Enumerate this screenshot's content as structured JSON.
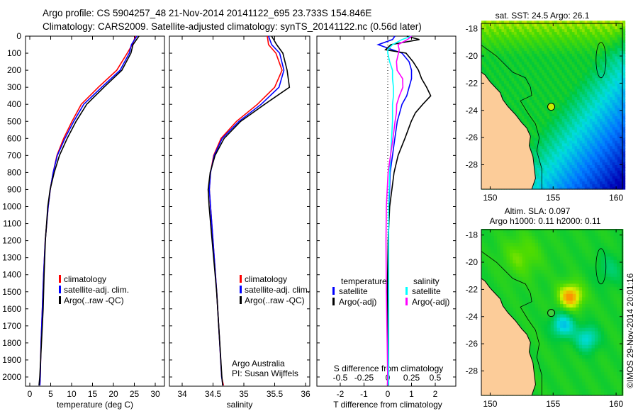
{
  "header": {
    "line1": "Argo profile: CS 5904257_48 21-Nov-2014 20141122_695 23.733S 154.846E",
    "line2": "Climatology: CARS2009. Satellite-adjusted climatology: synTS_20141122.nc (0.56d later)"
  },
  "credit": "©IMOS 29-Nov-2014 20:01:16",
  "colors": {
    "climatology": "#ff0000",
    "satellite": "#0000ff",
    "argo": "#000000",
    "sal_satellite": "#00ffff",
    "sal_argo": "#ff00ff",
    "land": "#fccc99"
  },
  "chart_data": [
    {
      "type": "line",
      "title": "",
      "xlabel": "temperature (deg C)",
      "ylabel": "",
      "xlim": [
        -1,
        31.5
      ],
      "ylim": [
        2055,
        0
      ],
      "xticks": [
        "0",
        "5",
        "10",
        "15",
        "20",
        "25",
        "30"
      ],
      "yticks": [
        "0",
        "100",
        "200",
        "300",
        "400",
        "500",
        "600",
        "700",
        "800",
        "900",
        "1000",
        "1100",
        "1200",
        "1300",
        "1400",
        "1500",
        "1600",
        "1700",
        "1800",
        "1900",
        "2000"
      ],
      "legend": [
        "climatology",
        "satellite-adj. clim.",
        "Argo(..raw -QC)"
      ],
      "depth": [
        0,
        50,
        100,
        200,
        300,
        400,
        500,
        600,
        700,
        800,
        900,
        1000,
        1200,
        1400,
        1600,
        1800,
        2000,
        2050
      ],
      "series": [
        {
          "name": "climatology",
          "values": [
            25.3,
            24.5,
            23.3,
            20.8,
            16.4,
            12.3,
            10.1,
            8.1,
            6.5,
            5.6,
            4.9,
            4.4,
            3.7,
            3.3,
            3.0,
            2.7,
            2.5,
            2.4
          ]
        },
        {
          "name": "satellite-adj. clim.",
          "values": [
            25.6,
            24.3,
            23.8,
            21.6,
            17.2,
            12.9,
            10.5,
            8.4,
            6.6,
            5.6,
            4.9,
            4.4,
            3.7,
            3.3,
            3.0,
            2.7,
            2.5,
            2.4
          ]
        },
        {
          "name": "Argo(..raw -QC)",
          "values": [
            26.1,
            24.5,
            24.0,
            22.0,
            17.9,
            13.8,
            11.1,
            8.8,
            6.9,
            5.8,
            5.0,
            4.5,
            3.8,
            3.3,
            3.0,
            2.7,
            2.5,
            2.4
          ]
        }
      ]
    },
    {
      "type": "line",
      "xlabel": "salinity",
      "xlim": [
        33.8,
        36.1
      ],
      "ylim": [
        2055,
        0
      ],
      "xticks": [
        "34",
        "34.5",
        "35",
        "35.5",
        "36"
      ],
      "legend": [
        "climatology",
        "satellite-adj. clim.",
        "Argo(..raw -QC)"
      ],
      "annotation": [
        "Argo Australia",
        "PI: Susan Wijffels"
      ],
      "depth": [
        0,
        50,
        100,
        200,
        300,
        400,
        500,
        600,
        700,
        800,
        900,
        1000,
        1200,
        1500,
        2000,
        2050
      ],
      "series": [
        {
          "name": "climatology",
          "values": [
            35.38,
            35.4,
            35.52,
            35.62,
            35.5,
            35.22,
            34.88,
            34.63,
            34.51,
            34.46,
            34.44,
            34.46,
            34.5,
            34.56,
            34.64,
            34.67
          ]
        },
        {
          "name": "satellite-adj. clim.",
          "values": [
            35.4,
            35.45,
            35.58,
            35.65,
            35.57,
            35.28,
            34.92,
            34.65,
            34.52,
            34.46,
            34.44,
            34.46,
            34.5,
            34.56,
            34.64,
            34.66
          ]
        },
        {
          "name": "Argo(..raw -QC)",
          "values": [
            35.45,
            35.52,
            35.62,
            35.7,
            35.75,
            35.35,
            34.95,
            34.67,
            34.52,
            34.45,
            34.43,
            34.45,
            34.49,
            34.55,
            34.63,
            34.65
          ]
        }
      ]
    },
    {
      "type": "line",
      "xlabel": "T difference from climatology",
      "xlabel2": "S difference from climatology",
      "xlim": [
        -3,
        2.9
      ],
      "ylim": [
        2055,
        0
      ],
      "xticks": [
        "-2",
        "-1",
        "0",
        "1",
        "2"
      ],
      "xticks2": [
        "-0.5",
        "-0.25",
        "0",
        "0.25",
        "0.5"
      ],
      "legend_titles": [
        "temperature",
        "salinity"
      ],
      "legend": [
        "satellite",
        "Argo(-adj)",
        "satellite",
        "Argo(-adj)"
      ],
      "depth": [
        0,
        20,
        50,
        80,
        100,
        150,
        200,
        250,
        300,
        350,
        400,
        450,
        500,
        600,
        700,
        800,
        1000,
        1200,
        1500,
        1800,
        2000,
        2050
      ],
      "series": [
        {
          "name": "temperature satellite",
          "unit": "degC",
          "values": [
            0.3,
            0.2,
            -0.4,
            0.2,
            0.6,
            0.9,
            1.0,
            1.0,
            0.9,
            0.8,
            0.6,
            0.5,
            0.4,
            0.3,
            0.2,
            0.1,
            0.05,
            0.03,
            0.0,
            0.0,
            0.0,
            0.0
          ]
        },
        {
          "name": "temperature Argo(-adj)",
          "unit": "degC",
          "values": [
            0.8,
            1.3,
            0.1,
            -0.1,
            0.8,
            1.1,
            1.3,
            1.4,
            1.6,
            1.8,
            1.5,
            1.2,
            1.0,
            0.7,
            0.4,
            0.25,
            0.1,
            0.05,
            0.0,
            0.0,
            0.0,
            0.0
          ]
        },
        {
          "name": "salinity satellite",
          "unit": "psu",
          "values": [
            0.25,
            0.15,
            0.05,
            0.0,
            0.0,
            0.02,
            0.05,
            0.05,
            0.06,
            0.06,
            0.05,
            0.05,
            0.05,
            0.04,
            0.03,
            0.02,
            0.01,
            0.01,
            0.01,
            0.01,
            0.01,
            0.01
          ]
        },
        {
          "name": "salinity Argo(-adj)",
          "unit": "psu",
          "values": [
            0.25,
            0.2,
            0.1,
            0.12,
            0.12,
            0.1,
            0.1,
            0.15,
            0.15,
            0.12,
            0.1,
            0.1,
            0.08,
            0.05,
            0.02,
            0.0,
            -0.01,
            -0.01,
            -0.01,
            -0.01,
            -0.01,
            -0.01
          ]
        }
      ]
    },
    {
      "type": "heatmap",
      "title": "sat. SST: 24.5 Argo: 26.1",
      "xticks": [
        "150",
        "155",
        "160"
      ],
      "yticks": [
        "-18",
        "-20",
        "-22",
        "-24",
        "-26",
        "-28"
      ],
      "xlim": [
        149.3,
        160.5
      ],
      "ylim": [
        -29.8,
        -17.6
      ],
      "argo_position": [
        154.846,
        -23.733
      ]
    },
    {
      "type": "heatmap",
      "title": "Altim. SLA: 0.097",
      "subtitle": "Argo h1000: 0.11 h2000: 0.11",
      "xticks": [
        "150",
        "155",
        "160"
      ],
      "yticks": [
        "-18",
        "-20",
        "-22",
        "-24",
        "-26",
        "-28"
      ],
      "xlim": [
        149.3,
        160.5
      ],
      "ylim": [
        -29.8,
        -17.6
      ],
      "argo_position": [
        154.846,
        -23.733
      ]
    }
  ]
}
